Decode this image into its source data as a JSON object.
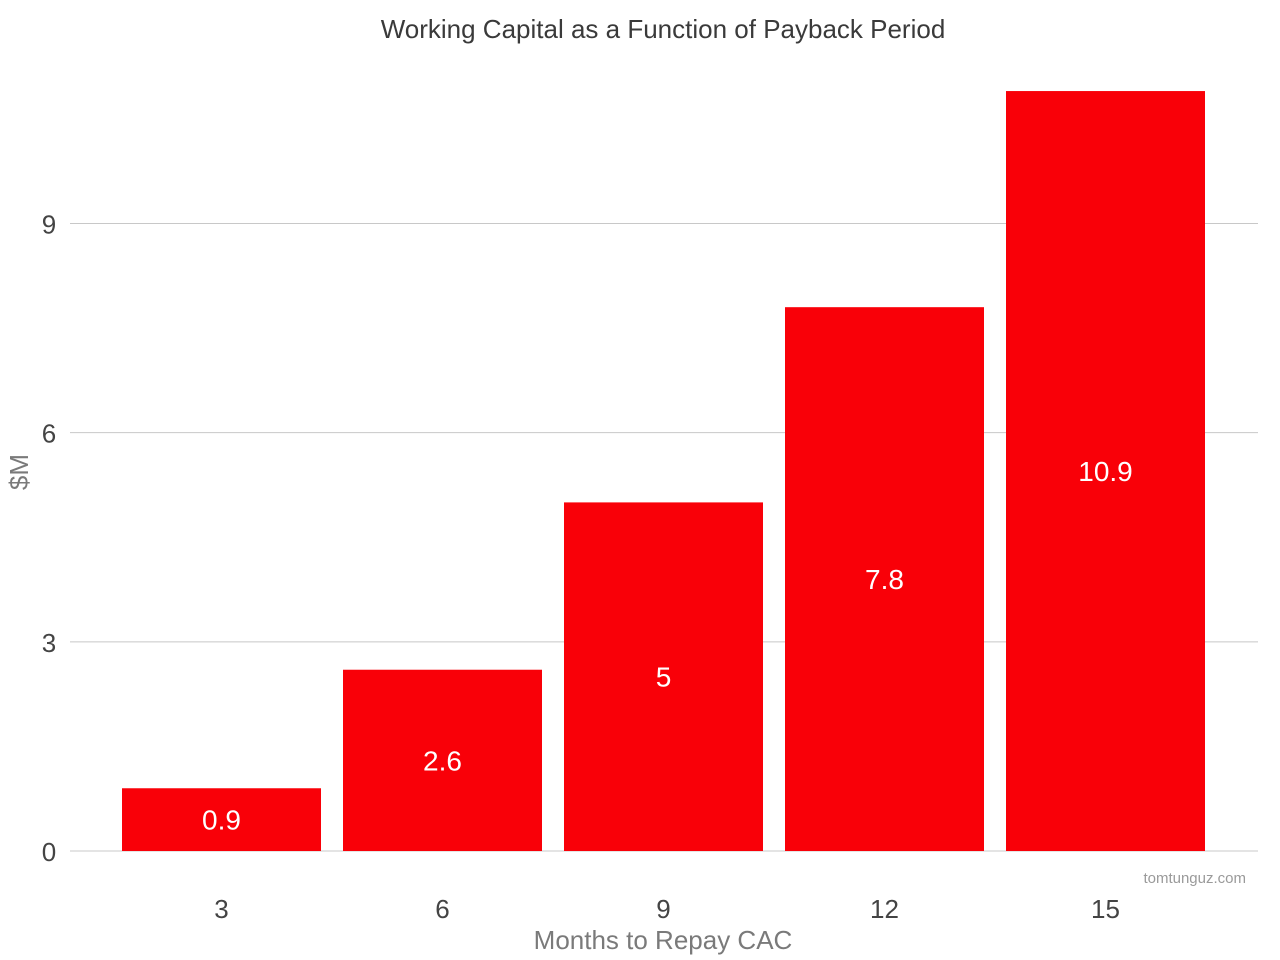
{
  "chart_data": {
    "type": "bar",
    "title": "Working Capital as a Function of Payback Period",
    "xlabel": "Months to Repay CAC",
    "ylabel": "$M",
    "categories": [
      "3",
      "6",
      "9",
      "12",
      "15"
    ],
    "values": [
      0.9,
      2.6,
      5,
      7.8,
      10.9
    ],
    "ylim": [
      0,
      11.3
    ],
    "yticks": [
      0,
      3,
      6,
      9
    ],
    "grid": true,
    "legend": "none",
    "bar_color": "#f90008",
    "watermark": "tomtunguz.com"
  }
}
